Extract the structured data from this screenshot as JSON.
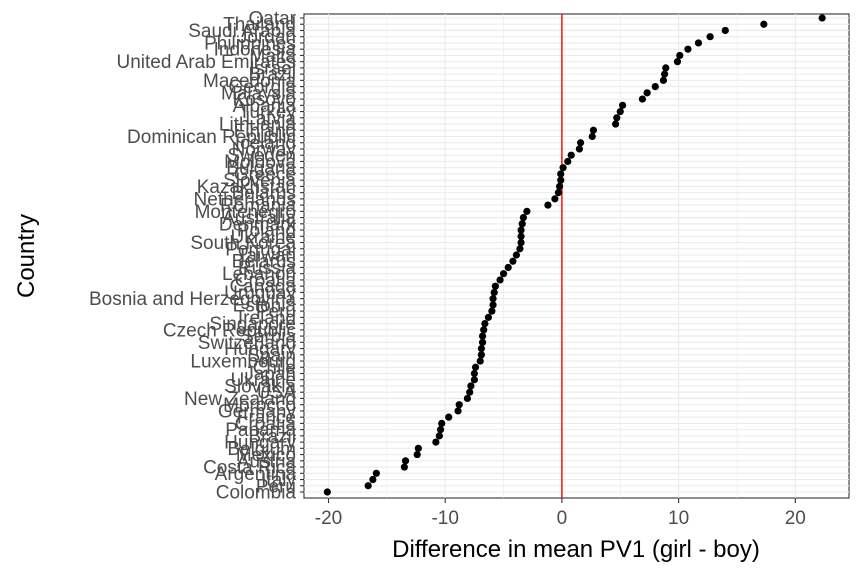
{
  "chart_data": {
    "type": "scatter",
    "xlabel": "Difference in mean PV1 (girl - boy)",
    "ylabel": "Country",
    "xlim": [
      -22.1,
      24.6
    ],
    "xticks": [
      -20,
      -10,
      0,
      10,
      20
    ],
    "reference_line": {
      "x": 0,
      "color": "#ff0000"
    },
    "grid": true,
    "point_color": "#000000",
    "y_labels_top_to_bottom": [
      "Qatar",
      "Thailand",
      "Saudi Arabia",
      "Jordan",
      "Philippines",
      "Indonesia",
      "Malta",
      "United Arab Emirates",
      "Israel",
      "Brazil",
      "Macedonia",
      "Georgia",
      "Malaysia",
      "Kosovo",
      "Albania",
      "Turkey",
      "Latvia",
      "Lithuania",
      "Finland",
      "Dominican Republic",
      "Iceland",
      "Norway",
      "Sweden",
      "Moldova",
      "Bulgaria",
      "Greece",
      "Slovenia",
      "Kazakhstan",
      "Belarus",
      "Netherlands",
      "Romania",
      "Montenegro",
      "Australia",
      "Denmark",
      "Poland",
      "Ukraine",
      "South Korea",
      "Portugal",
      "Taiwan",
      "Belarus",
      "Russia",
      "Lebanon",
      "Croatia",
      "Canada",
      "Uruguay",
      "Bosnia and Herzegovina",
      "Estonia",
      "Peru",
      "Ireland",
      "Singapore",
      "Czech Republic",
      "Serbia",
      "Switzerland",
      "Hungary",
      "Spain",
      "Luxembourg",
      "Chile",
      "Japan",
      "Ukraine",
      "Slovakia",
      "USA",
      "New Zealand",
      "Morocco",
      "Germany",
      "France",
      "Croatia",
      "Panama",
      "Brazil",
      "Hungary",
      "Belgium",
      "Mexico",
      "Austria",
      "Costa Rica",
      "Argentina",
      "Italy",
      "Peru",
      "Colombia"
    ],
    "points": [
      {
        "country": "Qatar",
        "value": 22.3
      },
      {
        "country": "Thailand",
        "value": 17.3
      },
      {
        "country": "Saudi Arabia",
        "value": 14.0
      },
      {
        "country": "Jordan",
        "value": 12.7
      },
      {
        "country": "Philippines",
        "value": 11.7
      },
      {
        "country": "Indonesia",
        "value": 10.8
      },
      {
        "country": "Malta",
        "value": 10.1
      },
      {
        "country": "United Arab Emirates",
        "value": 9.9
      },
      {
        "country": "Israel",
        "value": 8.9
      },
      {
        "country": "Brazil",
        "value": 8.8
      },
      {
        "country": "Macedonia",
        "value": 8.7
      },
      {
        "country": "Georgia",
        "value": 8.0
      },
      {
        "country": "Malaysia",
        "value": 7.3
      },
      {
        "country": "Kosovo",
        "value": 6.9
      },
      {
        "country": "Albania",
        "value": 5.2
      },
      {
        "country": "Turkey",
        "value": 5.0
      },
      {
        "country": "Latvia",
        "value": 4.7
      },
      {
        "country": "Lithuania",
        "value": 4.6
      },
      {
        "country": "Finland",
        "value": 2.7
      },
      {
        "country": "Dominican Republic",
        "value": 2.6
      },
      {
        "country": "Iceland",
        "value": 1.6
      },
      {
        "country": "Norway",
        "value": 1.5
      },
      {
        "country": "Sweden",
        "value": 0.8
      },
      {
        "country": "Moldova",
        "value": 0.5
      },
      {
        "country": "Bulgaria",
        "value": 0.1
      },
      {
        "country": "Greece",
        "value": -0.1
      },
      {
        "country": "Slovenia",
        "value": -0.1
      },
      {
        "country": "Kazakhstan",
        "value": -0.2
      },
      {
        "country": "Belarus",
        "value": -0.3
      },
      {
        "country": "Netherlands",
        "value": -0.6
      },
      {
        "country": "Romania",
        "value": -1.2
      },
      {
        "country": "Montenegro",
        "value": -3.0
      },
      {
        "country": "Australia",
        "value": -3.3
      },
      {
        "country": "Denmark",
        "value": -3.4
      },
      {
        "country": "Poland",
        "value": -3.5
      },
      {
        "country": "Ukraine",
        "value": -3.5
      },
      {
        "country": "South Korea",
        "value": -3.5
      },
      {
        "country": "Portugal",
        "value": -3.6
      },
      {
        "country": "Taiwan",
        "value": -3.9
      },
      {
        "country": "Belarus",
        "value": -4.2
      },
      {
        "country": "Russia",
        "value": -4.6
      },
      {
        "country": "Lebanon",
        "value": -5.0
      },
      {
        "country": "Croatia",
        "value": -5.3
      },
      {
        "country": "Canada",
        "value": -5.7
      },
      {
        "country": "Uruguay",
        "value": -5.8
      },
      {
        "country": "Bosnia and Herzegovina",
        "value": -5.9
      },
      {
        "country": "Estonia",
        "value": -5.9
      },
      {
        "country": "Peru",
        "value": -6.0
      },
      {
        "country": "Ireland",
        "value": -6.3
      },
      {
        "country": "Singapore",
        "value": -6.6
      },
      {
        "country": "Czech Republic",
        "value": -6.7
      },
      {
        "country": "Serbia",
        "value": -6.8
      },
      {
        "country": "Switzerland",
        "value": -6.8
      },
      {
        "country": "Hungary",
        "value": -6.9
      },
      {
        "country": "Spain",
        "value": -6.9
      },
      {
        "country": "Luxembourg",
        "value": -7.0
      },
      {
        "country": "Chile",
        "value": -7.4
      },
      {
        "country": "Japan",
        "value": -7.5
      },
      {
        "country": "Ukraine",
        "value": -7.5
      },
      {
        "country": "Slovakia",
        "value": -7.8
      },
      {
        "country": "USA",
        "value": -7.9
      },
      {
        "country": "New Zealand",
        "value": -8.1
      },
      {
        "country": "Morocco",
        "value": -8.8
      },
      {
        "country": "Germany",
        "value": -8.9
      },
      {
        "country": "France",
        "value": -9.7
      },
      {
        "country": "Croatia",
        "value": -10.3
      },
      {
        "country": "Panama",
        "value": -10.4
      },
      {
        "country": "Brazil",
        "value": -10.5
      },
      {
        "country": "Hungary",
        "value": -10.8
      },
      {
        "country": "Belgium",
        "value": -12.3
      },
      {
        "country": "Mexico",
        "value": -12.4
      },
      {
        "country": "Austria",
        "value": -13.4
      },
      {
        "country": "Costa Rica",
        "value": -13.5
      },
      {
        "country": "Argentina",
        "value": -15.9
      },
      {
        "country": "Italy",
        "value": -16.2
      },
      {
        "country": "Peru",
        "value": -16.6
      },
      {
        "country": "Colombia",
        "value": -20.1
      }
    ]
  }
}
